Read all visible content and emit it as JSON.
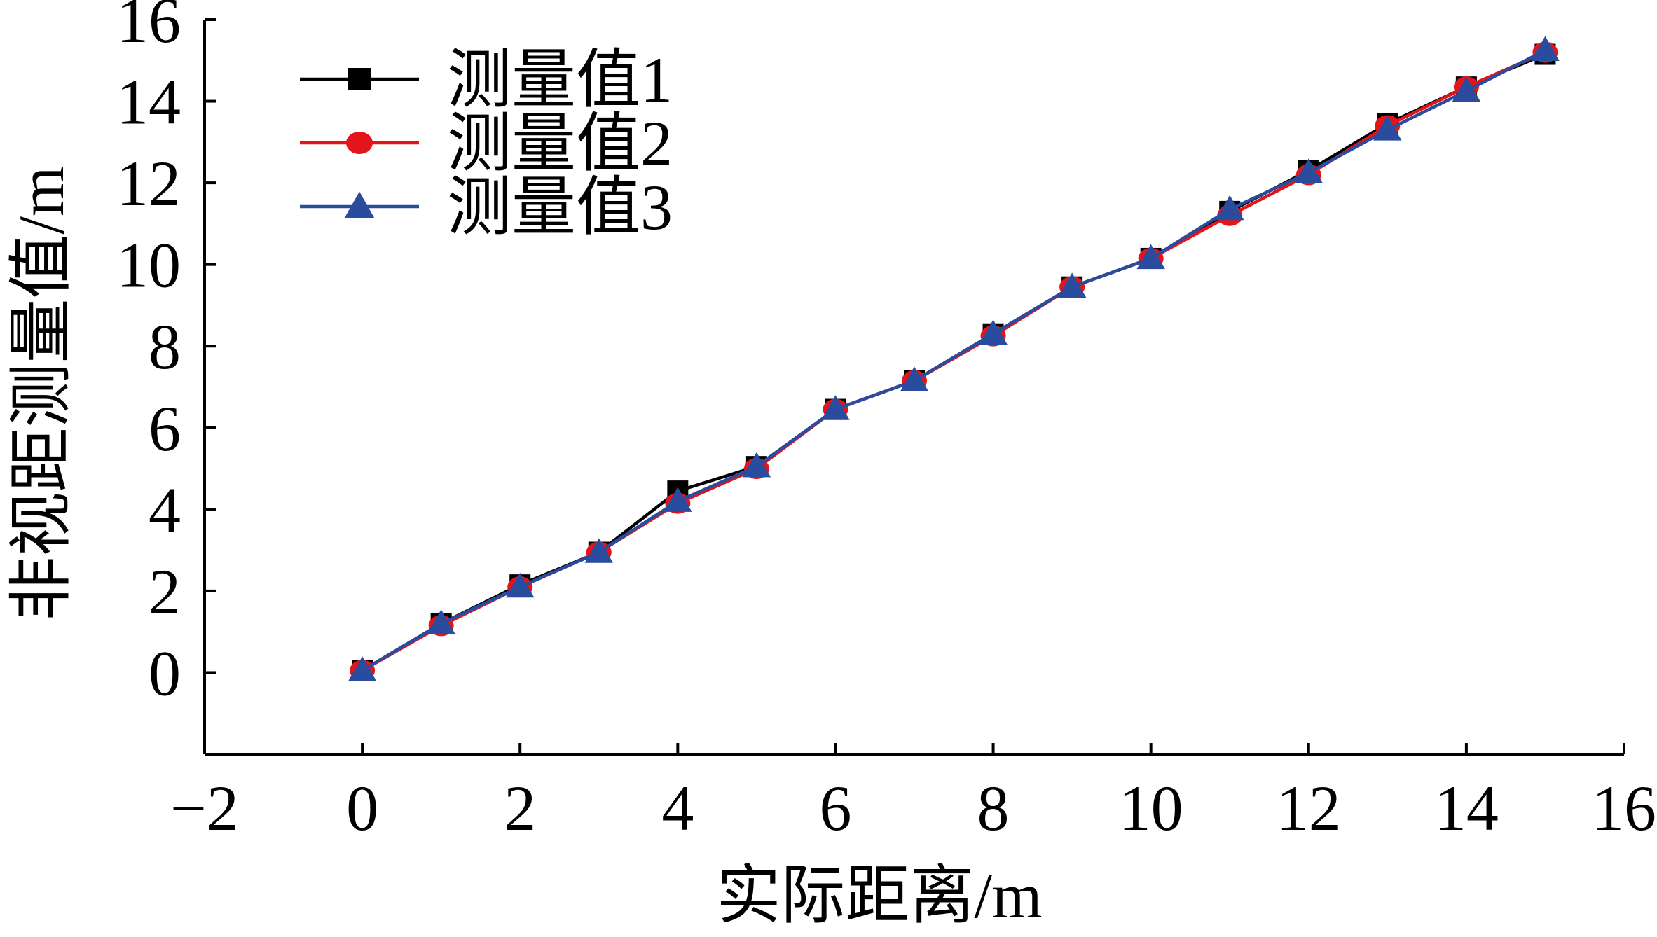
{
  "chart_data": {
    "type": "line",
    "title": "",
    "xlabel": "实际距离/m",
    "ylabel": "非视距测量值/m",
    "xlim": [
      -2,
      16
    ],
    "ylim": [
      -2,
      16
    ],
    "x_ticks": [
      -2,
      0,
      2,
      4,
      6,
      8,
      10,
      12,
      14,
      16
    ],
    "x_tick_labels": [
      "−2",
      "0",
      "2",
      "4",
      "6",
      "8",
      "10",
      "12",
      "14",
      "16"
    ],
    "y_ticks": [
      0,
      2,
      4,
      6,
      8,
      10,
      12,
      14,
      16
    ],
    "y_tick_labels": [
      "0",
      "2",
      "4",
      "6",
      "8",
      "10",
      "12",
      "14",
      "16"
    ],
    "grid": false,
    "legend_position": "top-left",
    "x": [
      0,
      1,
      2,
      3,
      4,
      5,
      6,
      7,
      8,
      9,
      10,
      11,
      12,
      13,
      14,
      15
    ],
    "series": [
      {
        "name": "测量值1",
        "color": "#000000",
        "marker": "square",
        "values": [
          0.05,
          1.2,
          2.15,
          2.95,
          4.45,
          5.05,
          6.45,
          7.15,
          8.3,
          9.45,
          10.15,
          11.3,
          12.3,
          13.45,
          14.35,
          15.15
        ]
      },
      {
        "name": "测量值2",
        "color": "#e4141b",
        "marker": "circle",
        "values": [
          0.05,
          1.15,
          2.1,
          2.95,
          4.15,
          5.0,
          6.45,
          7.15,
          8.25,
          9.45,
          10.15,
          11.2,
          12.2,
          13.4,
          14.35,
          15.2
        ]
      },
      {
        "name": "测量值3",
        "color": "#2a4c9e",
        "marker": "triangle",
        "values": [
          0.05,
          1.2,
          2.1,
          2.95,
          4.2,
          5.05,
          6.45,
          7.15,
          8.3,
          9.45,
          10.15,
          11.35,
          12.25,
          13.3,
          14.25,
          15.25
        ]
      }
    ]
  }
}
